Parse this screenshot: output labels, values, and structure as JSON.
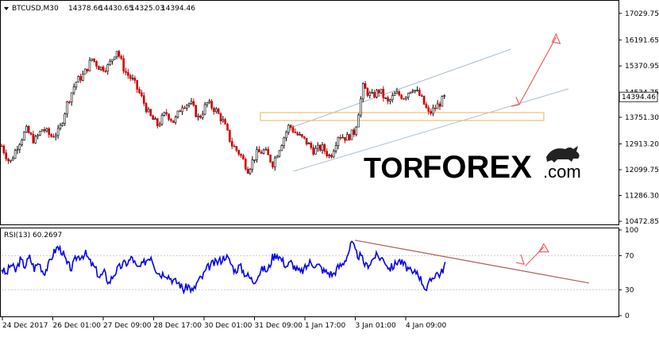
{
  "chart_data": [
    {
      "type": "candlestick",
      "header": {
        "symbol_timeframe": "BTCUSD,M30",
        "open": "14378.66",
        "high": "14430.65",
        "low": "14325.03",
        "close": "14394.46"
      },
      "y_ticks": [
        "17029.75",
        "16191.65",
        "15370.95",
        "14534.75",
        "13751.30",
        "12913.20",
        "12099.75",
        "11286.30",
        "10472.85"
      ],
      "last_price": "14394.46",
      "ylim": [
        10400,
        17400
      ],
      "series": [
        {
          "x": 0,
          "y": 12850
        },
        {
          "x": 2,
          "y": 12300
        },
        {
          "x": 4,
          "y": 12900
        },
        {
          "x": 6,
          "y": 13350
        },
        {
          "x": 8,
          "y": 13000
        },
        {
          "x": 10,
          "y": 13400
        },
        {
          "x": 12,
          "y": 13150
        },
        {
          "x": 14,
          "y": 13300
        },
        {
          "x": 16,
          "y": 14200
        },
        {
          "x": 18,
          "y": 14850
        },
        {
          "x": 20,
          "y": 15100
        },
        {
          "x": 22,
          "y": 15600
        },
        {
          "x": 24,
          "y": 15300
        },
        {
          "x": 26,
          "y": 15350
        },
        {
          "x": 28,
          "y": 15900
        },
        {
          "x": 30,
          "y": 15200
        },
        {
          "x": 32,
          "y": 14900
        },
        {
          "x": 34,
          "y": 14400
        },
        {
          "x": 36,
          "y": 13800
        },
        {
          "x": 38,
          "y": 13500
        },
        {
          "x": 40,
          "y": 13900
        },
        {
          "x": 42,
          "y": 13600
        },
        {
          "x": 44,
          "y": 14150
        },
        {
          "x": 46,
          "y": 14200
        },
        {
          "x": 48,
          "y": 13700
        },
        {
          "x": 50,
          "y": 14200
        },
        {
          "x": 52,
          "y": 14000
        },
        {
          "x": 54,
          "y": 13600
        },
        {
          "x": 56,
          "y": 12900
        },
        {
          "x": 58,
          "y": 12600
        },
        {
          "x": 60,
          "y": 12100
        },
        {
          "x": 62,
          "y": 12600
        },
        {
          "x": 64,
          "y": 12700
        },
        {
          "x": 66,
          "y": 12300
        },
        {
          "x": 68,
          "y": 12900
        },
        {
          "x": 70,
          "y": 13500
        },
        {
          "x": 72,
          "y": 13200
        },
        {
          "x": 74,
          "y": 13000
        },
        {
          "x": 76,
          "y": 12700
        },
        {
          "x": 78,
          "y": 12800
        },
        {
          "x": 80,
          "y": 12500
        },
        {
          "x": 82,
          "y": 13200
        },
        {
          "x": 84,
          "y": 13100
        },
        {
          "x": 86,
          "y": 13300
        },
        {
          "x": 88,
          "y": 14700
        },
        {
          "x": 90,
          "y": 14400
        },
        {
          "x": 92,
          "y": 14600
        },
        {
          "x": 94,
          "y": 14200
        },
        {
          "x": 96,
          "y": 14500
        },
        {
          "x": 98,
          "y": 14400
        },
        {
          "x": 100,
          "y": 14700
        },
        {
          "x": 102,
          "y": 14400
        },
        {
          "x": 104,
          "y": 13850
        },
        {
          "x": 106,
          "y": 14100
        },
        {
          "x": 108,
          "y": 14394
        }
      ],
      "x_max": 150,
      "candle_colors": {
        "up": "#000000",
        "down": "#cc0000"
      },
      "channel_color": "#a8bfd1",
      "zone": {
        "low": 13650,
        "high": 13900,
        "color": "#f0c070"
      },
      "arrow_color": "#f06060"
    },
    {
      "type": "line",
      "title": "RSI(13) 60.2697",
      "y_ticks": [
        "100",
        "70",
        "30",
        "0"
      ],
      "ylim": [
        0,
        100
      ],
      "color": "#0000ee",
      "values": [
        55,
        48,
        60,
        52,
        65,
        58,
        68,
        55,
        62,
        50,
        58,
        72,
        80,
        75,
        60,
        55,
        68,
        70,
        72,
        62,
        55,
        45,
        50,
        38,
        48,
        55,
        60,
        62,
        68,
        55,
        58,
        65,
        70,
        55,
        48,
        50,
        45,
        40,
        38,
        30,
        35,
        28,
        40,
        45,
        55,
        60,
        62,
        65,
        70,
        62,
        52,
        58,
        50,
        45,
        40,
        48,
        55,
        52,
        68,
        72,
        65,
        58,
        62,
        55,
        50,
        55,
        62,
        60,
        58,
        52,
        50,
        48,
        56,
        60,
        70,
        85,
        72,
        68,
        58,
        62,
        70,
        68,
        65,
        55,
        58,
        65,
        60,
        55,
        48,
        52,
        40,
        30,
        42,
        50,
        48,
        60
      ],
      "trend_color": "#b05a5a"
    }
  ],
  "x_labels": [
    "24 Dec 2017",
    "26 Dec 01:00",
    "27 Dec 09:00",
    "28 Dec 17:00",
    "30 Dec 01:00",
    "31 Dec 09:00",
    "1 Jan 17:00",
    "3 Jan 01:00",
    "4 Jan 09:00"
  ],
  "watermark": {
    "tor": "TOR",
    "forex": "FOREX",
    "dotcom": ".com",
    "tor_color": "#222222",
    "forex_color": "#e8401c",
    "dotcom_color": "#222222"
  }
}
